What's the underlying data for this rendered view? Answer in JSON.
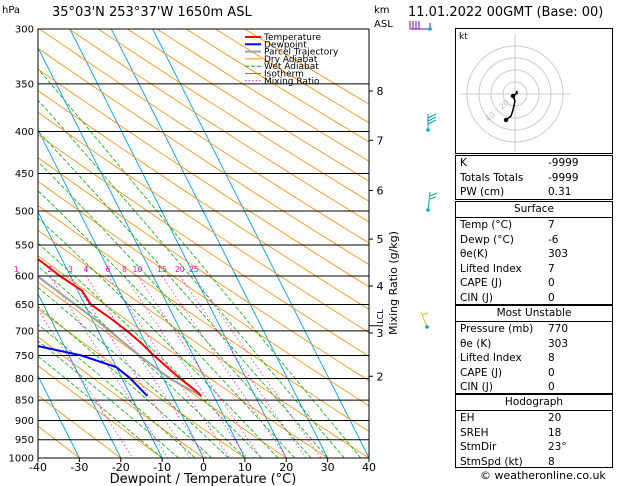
{
  "header": {
    "location": "35°03'N  253°37'W  1650m  ASL",
    "datetime": "11.01.2022  00GMT  (Base: 00)"
  },
  "units": {
    "hpa": "hPa",
    "km": "km",
    "asl": "ASL"
  },
  "colors": {
    "temperature": "#ff0000",
    "dewpoint": "#0000ff",
    "parcel": "#a0a0a0",
    "dry_adiabat": "#ff8c00",
    "wet_adiabat": "#00b000",
    "isotherm": "#00a0ff",
    "mixing_ratio": "#ff00cc"
  },
  "chart_data": {
    "type": "line",
    "xlabel": "Dewpoint / Temperature (°C)",
    "ylabel": "Mixing Ratio (g/kg)",
    "x_ticks": [
      -40,
      -30,
      -20,
      -10,
      0,
      10,
      20,
      30,
      40
    ],
    "pressure_levels": [
      300,
      350,
      400,
      450,
      500,
      550,
      600,
      650,
      700,
      750,
      800,
      850,
      900,
      950,
      1000
    ],
    "pressure_range": [
      300,
      1000
    ],
    "temperature_range": [
      -40,
      40
    ],
    "skew_per_decade": 100,
    "km_ticks": [
      {
        "label": "8",
        "p": 357
      },
      {
        "label": "7",
        "p": 410
      },
      {
        "label": "6",
        "p": 472
      },
      {
        "label": "5",
        "p": 541
      },
      {
        "label": "4",
        "p": 617
      },
      {
        "label": "3",
        "p": 704
      },
      {
        "label": "2",
        "p": 795
      }
    ],
    "lcl_label": "LCL",
    "lcl_pressure": 690,
    "mixing_ratio_values": [
      "1",
      "2",
      "3",
      "4",
      "6",
      "8",
      "10",
      "15",
      "20",
      "25"
    ],
    "legend": [
      "Temperature",
      "Dewpoint",
      "Parcel Trajectory",
      "Dry Adiabat",
      "Wet Adiabat",
      "Isotherm",
      "Mixing Ratio"
    ],
    "series": [
      {
        "name": "Temperature",
        "points": [
          [
            300,
            -50
          ],
          [
            350,
            -44
          ],
          [
            400,
            -38
          ],
          [
            450,
            -31
          ],
          [
            500,
            -24.5
          ],
          [
            550,
            -18.5
          ],
          [
            600,
            -12.5
          ],
          [
            625,
            -9
          ],
          [
            650,
            -8.5
          ],
          [
            675,
            -5.5
          ],
          [
            700,
            -3
          ],
          [
            725,
            -1
          ],
          [
            750,
            0.5
          ],
          [
            800,
            4
          ],
          [
            830,
            6.5
          ],
          [
            840,
            7
          ]
        ]
      },
      {
        "name": "Dewpoint",
        "points": [
          [
            300,
            -68
          ],
          [
            350,
            -72
          ],
          [
            400,
            -76
          ],
          [
            450,
            -73
          ],
          [
            500,
            -70
          ],
          [
            550,
            -76
          ],
          [
            600,
            -78
          ],
          [
            630,
            -77
          ],
          [
            636,
            -59
          ],
          [
            650,
            -59
          ],
          [
            675,
            -59
          ],
          [
            688,
            -52
          ],
          [
            695,
            -51
          ],
          [
            712,
            -48
          ],
          [
            725,
            -29
          ],
          [
            750,
            -17
          ],
          [
            775,
            -10
          ],
          [
            800,
            -8
          ],
          [
            840,
            -6
          ]
        ]
      },
      {
        "name": "Parcel Trajectory",
        "points": [
          [
            300,
            -58
          ],
          [
            400,
            -44
          ],
          [
            500,
            -30
          ],
          [
            600,
            -18
          ],
          [
            690,
            -8
          ],
          [
            750,
            -3
          ],
          [
            800,
            1.5
          ],
          [
            840,
            7
          ]
        ]
      }
    ]
  },
  "indices": {
    "rows": [
      [
        "K",
        "-9999"
      ],
      [
        "Totals Totals",
        "-9999"
      ],
      [
        "PW (cm)",
        "0.31"
      ]
    ]
  },
  "surface": {
    "title": "Surface",
    "rows": [
      [
        "Temp (°C)",
        "7"
      ],
      [
        "Dewp (°C)",
        "-6"
      ],
      [
        "θe(K)",
        "303"
      ],
      [
        "Lifted Index",
        "7"
      ],
      [
        "CAPE (J)",
        "0"
      ],
      [
        "CIN (J)",
        "0"
      ]
    ]
  },
  "most_unstable": {
    "title": "Most Unstable",
    "rows": [
      [
        "Pressure (mb)",
        "770"
      ],
      [
        "θe (K)",
        "303"
      ],
      [
        "Lifted Index",
        "8"
      ],
      [
        "CAPE (J)",
        "0"
      ],
      [
        "CIN (J)",
        "0"
      ]
    ]
  },
  "hodograph": {
    "title": "Hodograph",
    "label": "kt",
    "ring_labels": [
      "20",
      "40"
    ],
    "rows": [
      [
        "EH",
        "20"
      ],
      [
        "SREH",
        "18"
      ],
      [
        "StmDir",
        "23°"
      ],
      [
        "StmSpd (kt)",
        "8"
      ]
    ]
  },
  "footer": {
    "copyright": "© weatheronline.co.uk"
  }
}
